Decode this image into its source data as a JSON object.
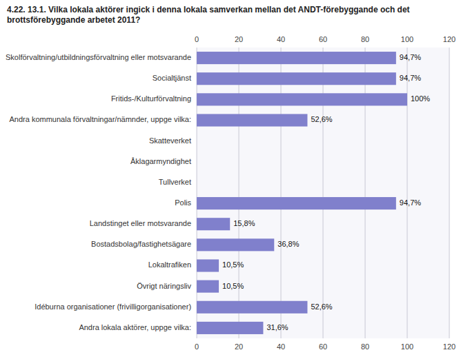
{
  "chart_data": {
    "type": "bar",
    "orientation": "horizontal",
    "title": "4.22. 13.1. Vilka lokala aktörer ingick i denna lokala samverkan mellan det ANDT-förebyggande och det\nbrottsförebyggande arbetet 2011?",
    "categories": [
      "Skolförvaltning/utbildningsförvaltning eller motsvarande",
      "Socialtjänst",
      "Fritids-/Kulturförvaltning",
      "Andra kommunala förvaltningar/nämnder, uppge vilka:",
      "Skatteverket",
      "Åklagarmyndighet",
      "Tullverket",
      "Polis",
      "Landstinget eller motsvarande",
      "Bostadsbolag/fastighetsägare",
      "Lokaltrafiken",
      "Övrigt näringsliv",
      "Idéburna organisationer (frivilligorganisationer)",
      "Andra lokala aktörer, uppge vilka:"
    ],
    "values": [
      94.7,
      94.7,
      100.0,
      52.6,
      0.0,
      0.0,
      0.0,
      94.7,
      15.8,
      36.8,
      10.5,
      10.5,
      52.6,
      31.6
    ],
    "value_labels": [
      "94,7%",
      "94,7%",
      "100%",
      "52,6%",
      null,
      null,
      null,
      "94,7%",
      "15,8%",
      "36,8%",
      "10,5%",
      "10,5%",
      "52,6%",
      "31,6%"
    ],
    "data_labels": true,
    "color": "#8080cc",
    "xlim": [
      0,
      120
    ],
    "xticks": [
      0,
      20,
      40,
      60,
      80,
      100,
      120
    ],
    "grid": true
  }
}
